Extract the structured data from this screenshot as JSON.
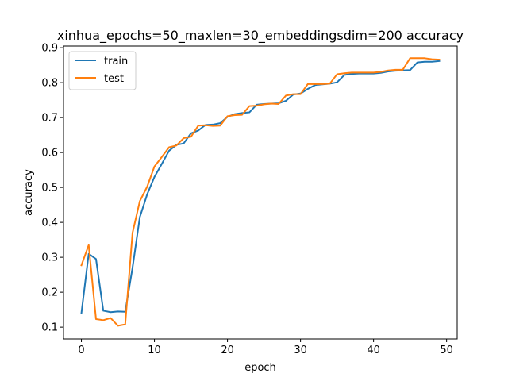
{
  "chart_data": {
    "type": "line",
    "title": "xinhua_epochs=50_maxlen=30_embeddingsdim=200 accuracy",
    "xlabel": "epoch",
    "ylabel": "accuracy",
    "xlim": [
      -2.45,
      51.45
    ],
    "ylim": [
      0.0662,
      0.9048
    ],
    "x_ticks": [
      0,
      10,
      20,
      30,
      40,
      50
    ],
    "y_ticks": [
      0.1,
      0.2,
      0.3,
      0.4,
      0.5,
      0.6,
      0.7,
      0.8,
      0.9
    ],
    "x_tick_labels": [
      "0",
      "10",
      "20",
      "30",
      "40",
      "50"
    ],
    "y_tick_labels": [
      "0.1",
      "0.2",
      "0.3",
      "0.4",
      "0.5",
      "0.6",
      "0.7",
      "0.8",
      "0.9"
    ],
    "grid": false,
    "legend_position": "top-left",
    "x": [
      0,
      1,
      2,
      3,
      4,
      5,
      6,
      7,
      8,
      9,
      10,
      11,
      12,
      13,
      14,
      15,
      16,
      17,
      18,
      19,
      20,
      21,
      22,
      23,
      24,
      25,
      26,
      27,
      28,
      29,
      30,
      31,
      32,
      33,
      34,
      35,
      36,
      37,
      38,
      39,
      40,
      41,
      42,
      43,
      44,
      45,
      46,
      47,
      48,
      49
    ],
    "series": [
      {
        "name": "train",
        "color": "#1f77b4",
        "values": [
          0.14,
          0.31,
          0.295,
          0.147,
          0.143,
          0.145,
          0.144,
          0.27,
          0.415,
          0.48,
          0.53,
          0.567,
          0.605,
          0.622,
          0.626,
          0.655,
          0.663,
          0.679,
          0.68,
          0.684,
          0.702,
          0.71,
          0.713,
          0.715,
          0.737,
          0.739,
          0.74,
          0.741,
          0.748,
          0.766,
          0.769,
          0.782,
          0.793,
          0.795,
          0.797,
          0.801,
          0.822,
          0.825,
          0.826,
          0.826,
          0.826,
          0.828,
          0.832,
          0.834,
          0.835,
          0.836,
          0.858,
          0.86,
          0.86,
          0.862
        ]
      },
      {
        "name": "test",
        "color": "#ff7f0e",
        "values": [
          0.277,
          0.335,
          0.123,
          0.12,
          0.126,
          0.104,
          0.108,
          0.37,
          0.461,
          0.502,
          0.56,
          0.587,
          0.615,
          0.62,
          0.641,
          0.645,
          0.677,
          0.678,
          0.676,
          0.677,
          0.704,
          0.707,
          0.708,
          0.733,
          0.734,
          0.738,
          0.74,
          0.739,
          0.763,
          0.767,
          0.767,
          0.796,
          0.796,
          0.796,
          0.797,
          0.824,
          0.827,
          0.829,
          0.829,
          0.829,
          0.829,
          0.831,
          0.835,
          0.837,
          0.837,
          0.87,
          0.87,
          0.87,
          0.867,
          0.866
        ]
      }
    ]
  }
}
